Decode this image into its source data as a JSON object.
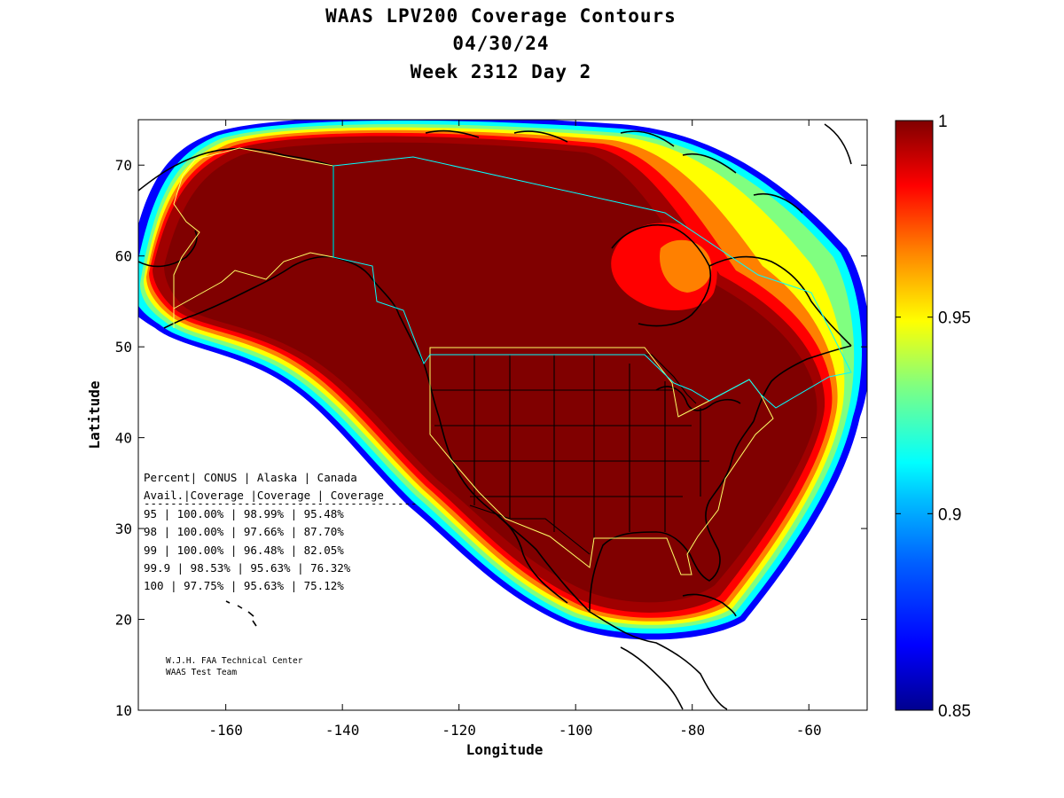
{
  "title": {
    "line1": "WAAS LPV200 Coverage Contours",
    "line2": "04/30/24",
    "line3": "Week 2312 Day 2"
  },
  "axes": {
    "xlabel": "Longitude",
    "ylabel": "Latitude",
    "x_ticks": [
      "-160",
      "-140",
      "-120",
      "-100",
      "-80",
      "-60"
    ],
    "y_ticks": [
      "70",
      "60",
      "50",
      "40",
      "30",
      "20",
      "10"
    ],
    "xlim": [
      -175,
      -50
    ],
    "ylim": [
      10,
      75
    ]
  },
  "colorbar": {
    "ticks": [
      "1",
      "0.95",
      "0.9",
      "0.85"
    ],
    "range": [
      0.85,
      1
    ],
    "colormap": [
      "#00008f",
      "#0000ff",
      "#0080ff",
      "#00ffff",
      "#80ff80",
      "#ffff00",
      "#ff8000",
      "#ff0000",
      "#800000"
    ]
  },
  "table": {
    "header1": "Percent| CONUS   | Alaska  | Canada",
    "header2": " Avail.|Coverage |Coverage | Coverage",
    "rule": "-----------------------------------------",
    "rows": [
      "  95   | 100.00%  | 98.99% | 95.48%",
      "  98   | 100.00%  | 97.66% | 87.70%",
      "  99   | 100.00%  | 96.48% | 82.05%",
      "99.9   | 98.53%  | 95.63% | 76.32%",
      " 100   | 97.75%  | 95.63% | 75.12%"
    ]
  },
  "credit": {
    "line1": "W.J.H. FAA Technical Center",
    "line2": "WAAS Test Team"
  },
  "colors": {
    "core": "#800000",
    "dark_red": "#a00000",
    "red": "#ff0000",
    "orange": "#ff8000",
    "yellow": "#ffff00",
    "green": "#80ff80",
    "cyan": "#00ffff",
    "blue": "#0000ff",
    "coast": "#000000",
    "conus_boundary": "#ffff66",
    "canada_boundary": "#00ffff"
  }
}
